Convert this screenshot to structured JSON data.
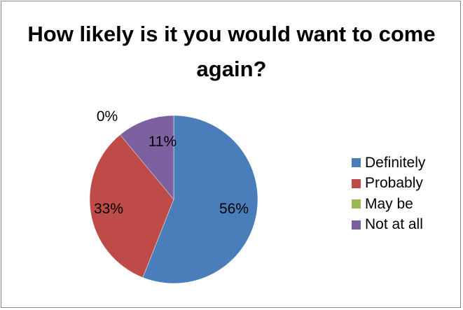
{
  "chart_data": {
    "type": "pie",
    "title": "How likely is it you would want to come again?",
    "categories": [
      "Definitely",
      "Probably",
      "May be",
      "Not at all"
    ],
    "values": [
      56,
      33,
      0,
      11
    ],
    "labels": [
      "56%",
      "33%",
      "0%",
      "11%"
    ],
    "colors": [
      "#4A7EBB",
      "#BE4B48",
      "#98B954",
      "#7D60A0"
    ],
    "legend_position": "right"
  }
}
